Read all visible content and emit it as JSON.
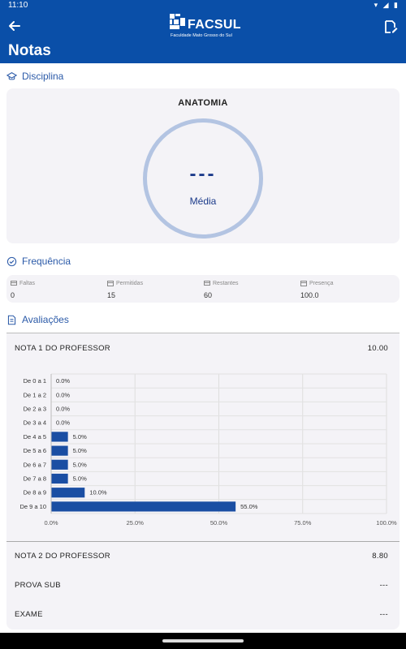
{
  "status_bar": {
    "time": "11:10"
  },
  "app_bar": {
    "title": "Notas",
    "logo_text": "FACSUL",
    "logo_subtitle": "Faculdade Mato Grosso do Sul"
  },
  "sections": {
    "discipline": "Disciplina",
    "frequency": "Frequência",
    "evaluations": "Avaliações"
  },
  "discipline": {
    "name": "ANATOMIA",
    "average_value": "---",
    "average_label": "Média"
  },
  "frequency": {
    "items": [
      {
        "label": "Faltas",
        "value": "0"
      },
      {
        "label": "Permitidas",
        "value": "15"
      },
      {
        "label": "Restantes",
        "value": "60"
      },
      {
        "label": "Presença",
        "value": "100.0"
      }
    ]
  },
  "evaluations": [
    {
      "name": "NOTA 1 DO PROFESSOR",
      "value": "10.00"
    },
    {
      "name": "NOTA 2 DO PROFESSOR",
      "value": "8.80"
    },
    {
      "name": "PROVA SUB",
      "value": "---"
    },
    {
      "name": "EXAME",
      "value": "---"
    }
  ],
  "colors": {
    "primary": "#0a4fa8",
    "bar": "#1a4ea3",
    "ring": "#b3c4e2"
  },
  "chart_data": {
    "type": "bar",
    "orientation": "horizontal",
    "categories": [
      "De 0 a 1",
      "De 1 a 2",
      "De 2 a 3",
      "De 3 a 4",
      "De 4 a 5",
      "De 5 a 6",
      "De 6 a 7",
      "De 7 a 8",
      "De 8 a 9",
      "De 9 a 10"
    ],
    "values": [
      0.0,
      0.0,
      0.0,
      0.0,
      5.0,
      5.0,
      5.0,
      5.0,
      10.0,
      55.0
    ],
    "value_labels": [
      "0.0%",
      "0.0%",
      "0.0%",
      "0.0%",
      "5.0%",
      "5.0%",
      "5.0%",
      "5.0%",
      "10.0%",
      "55.0%"
    ],
    "xlim": [
      0,
      100
    ],
    "x_ticks": [
      "0.0%",
      "25.0%",
      "50.0%",
      "75.0%",
      "100.0%"
    ],
    "grid": true
  }
}
